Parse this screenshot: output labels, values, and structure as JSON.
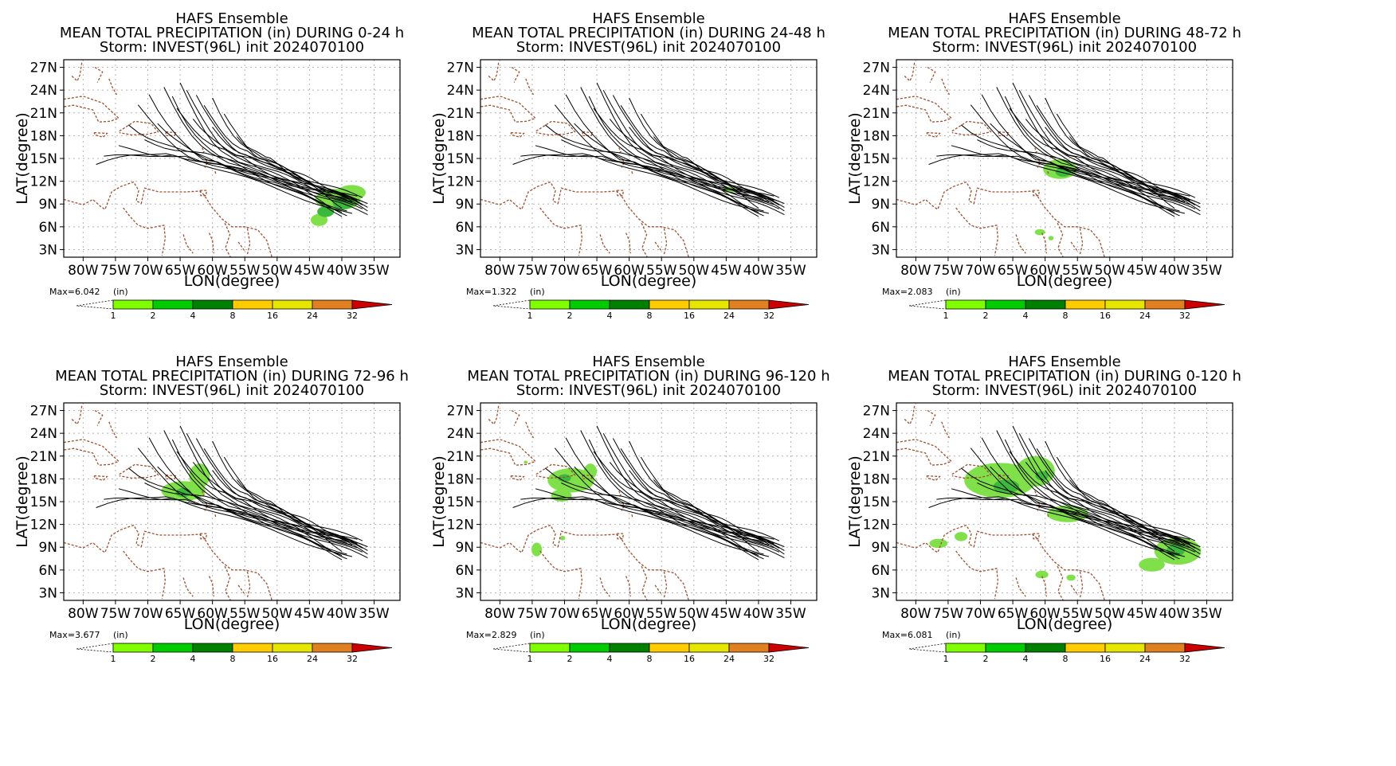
{
  "panels": [
    {
      "t1": "HAFS Ensemble",
      "t2": "MEAN  TOTAL  PRECIPITATION  (in)  DURING    0-24  h",
      "t3": "Storm:  INVEST(96L)  init  2024070100",
      "max": "Max=6.042",
      "unit": "(in)",
      "precip": [
        {
          "lon": -40.6,
          "lat": 9.6,
          "rlon": 3.5,
          "rlat": 1.4,
          "lvl": 1
        },
        {
          "lon": -38.5,
          "lat": 10.5,
          "rlon": 2.2,
          "rlat": 1.0,
          "lvl": 1
        },
        {
          "lon": -43.5,
          "lat": 6.9,
          "rlon": 1.3,
          "rlat": 0.8,
          "lvl": 1
        },
        {
          "lon": -39.8,
          "lat": 9.1,
          "rlon": 1.6,
          "rlat": 0.8,
          "lvl": 2
        },
        {
          "lon": -42.5,
          "lat": 8.0,
          "rlon": 1.3,
          "rlat": 0.7,
          "lvl": 2
        }
      ]
    },
    {
      "t1": "HAFS Ensemble",
      "t2": "MEAN  TOTAL  PRECIPITATION  (in)  DURING  24-48  h",
      "t3": "Storm:  INVEST(96L)  init  2024070100",
      "max": "Max=1.322",
      "unit": "(in)",
      "precip": [
        {
          "lon": -44.5,
          "lat": 10.9,
          "rlon": 1.0,
          "rlat": 0.4,
          "lvl": 1
        }
      ]
    },
    {
      "t1": "HAFS Ensemble",
      "t2": "MEAN  TOTAL  PRECIPITATION  (in)  DURING  48-72  h",
      "t3": "Storm:  INVEST(96L)  init  2024070100",
      "max": "Max=2.083",
      "unit": "(in)",
      "precip": [
        {
          "lon": -57.7,
          "lat": 13.6,
          "rlon": 2.6,
          "rlat": 1.3,
          "lvl": 1
        },
        {
          "lon": -57.2,
          "lat": 13.2,
          "rlon": 1.2,
          "rlat": 0.6,
          "lvl": 2
        },
        {
          "lon": -60.8,
          "lat": 5.3,
          "rlon": 0.8,
          "rlat": 0.4,
          "lvl": 1
        },
        {
          "lon": -59.1,
          "lat": 4.5,
          "rlon": 0.4,
          "rlat": 0.3,
          "lvl": 1
        }
      ]
    },
    {
      "t1": "HAFS Ensemble",
      "t2": "MEAN  TOTAL  PRECIPITATION  (in)  DURING  72-96  h",
      "t3": "Storm:  INVEST(96L)  init  2024070100",
      "max": "Max=3.677",
      "unit": "(in)",
      "precip": [
        {
          "lon": -64.5,
          "lat": 16.4,
          "rlon": 3.4,
          "rlat": 1.3,
          "lvl": 1
        },
        {
          "lon": -62.0,
          "lat": 18.4,
          "rlon": 1.6,
          "rlat": 1.6,
          "lvl": 1
        },
        {
          "lon": -64.5,
          "lat": 16.2,
          "rlon": 1.2,
          "rlat": 0.6,
          "lvl": 2
        }
      ]
    },
    {
      "t1": "HAFS Ensemble",
      "t2": "MEAN  TOTAL  PRECIPITATION  (in)  DURING  96-120  h",
      "t3": "Storm:  INVEST(96L)  init  2024070100",
      "max": "Max=2.829",
      "unit": "(in)",
      "precip": [
        {
          "lon": -69.0,
          "lat": 17.8,
          "rlon": 3.6,
          "rlat": 1.6,
          "lvl": 1
        },
        {
          "lon": -70.5,
          "lat": 15.8,
          "rlon": 1.6,
          "rlat": 0.8,
          "lvl": 1
        },
        {
          "lon": -66.0,
          "lat": 19.0,
          "rlon": 1.0,
          "rlat": 1.0,
          "lvl": 1
        },
        {
          "lon": -70.0,
          "lat": 18.1,
          "rlon": 1.0,
          "rlat": 0.5,
          "lvl": 2
        },
        {
          "lon": -74.3,
          "lat": 8.7,
          "rlon": 0.8,
          "rlat": 0.9,
          "lvl": 1
        },
        {
          "lon": -70.3,
          "lat": 10.2,
          "rlon": 0.4,
          "rlat": 0.3,
          "lvl": 1
        },
        {
          "lon": -76.0,
          "lat": 20.2,
          "rlon": 0.3,
          "rlat": 0.2,
          "lvl": 1
        }
      ]
    },
    {
      "t1": "HAFS Ensemble",
      "t2": "MEAN  TOTAL  PRECIPITATION  (in)  DURING  0-120  h",
      "t3": "Storm:  INVEST(96L)  init  2024070100",
      "max": "Max=6.081",
      "unit": "(in)",
      "precip": [
        {
          "lon": -67.0,
          "lat": 17.8,
          "rlon": 5.5,
          "rlat": 2.3,
          "lvl": 1
        },
        {
          "lon": -61.5,
          "lat": 19.0,
          "rlon": 3.0,
          "rlat": 2.0,
          "lvl": 1
        },
        {
          "lon": -56.5,
          "lat": 13.4,
          "rlon": 3.2,
          "rlat": 1.1,
          "lvl": 1
        },
        {
          "lon": -39.5,
          "lat": 8.5,
          "rlon": 3.6,
          "rlat": 1.8,
          "lvl": 1
        },
        {
          "lon": -43.5,
          "lat": 6.7,
          "rlon": 2.0,
          "rlat": 0.9,
          "lvl": 1
        },
        {
          "lon": -66.0,
          "lat": 17.0,
          "rlon": 2.0,
          "rlat": 0.9,
          "lvl": 2
        },
        {
          "lon": -60.5,
          "lat": 18.4,
          "rlon": 1.0,
          "rlat": 0.6,
          "lvl": 2
        },
        {
          "lon": -39.8,
          "lat": 8.6,
          "rlon": 1.4,
          "rlat": 0.8,
          "lvl": 2
        },
        {
          "lon": -76.5,
          "lat": 9.5,
          "rlon": 1.4,
          "rlat": 0.6,
          "lvl": 1
        },
        {
          "lon": -73.0,
          "lat": 10.4,
          "rlon": 1.0,
          "rlat": 0.6,
          "lvl": 1
        },
        {
          "lon": -60.5,
          "lat": 5.4,
          "rlon": 1.0,
          "rlat": 0.5,
          "lvl": 1
        },
        {
          "lon": -56.0,
          "lat": 5.0,
          "rlon": 0.7,
          "rlat": 0.4,
          "lvl": 1
        }
      ]
    }
  ],
  "axes": {
    "xlabel": "LON(degree)",
    "ylabel": "LAT(degree)",
    "lon_range": [
      -83,
      -31
    ],
    "lat_range": [
      2,
      28
    ],
    "x_ticks": [
      {
        "v": -80,
        "label": "80W"
      },
      {
        "v": -75,
        "label": "75W"
      },
      {
        "v": -70,
        "label": "70W"
      },
      {
        "v": -65,
        "label": "65W"
      },
      {
        "v": -60,
        "label": "60W"
      },
      {
        "v": -55,
        "label": "55W"
      },
      {
        "v": -50,
        "label": "50W"
      },
      {
        "v": -45,
        "label": "45W"
      },
      {
        "v": -40,
        "label": "40W"
      },
      {
        "v": -35,
        "label": "35W"
      }
    ],
    "y_ticks": [
      {
        "v": 3,
        "label": "3N"
      },
      {
        "v": 6,
        "label": "6N"
      },
      {
        "v": 9,
        "label": "9N"
      },
      {
        "v": 12,
        "label": "12N"
      },
      {
        "v": 15,
        "label": "15N"
      },
      {
        "v": 18,
        "label": "18N"
      },
      {
        "v": 21,
        "label": "21N"
      },
      {
        "v": 24,
        "label": "24N"
      },
      {
        "v": 27,
        "label": "27N"
      }
    ]
  },
  "colorbar": {
    "labels": [
      "1",
      "2",
      "4",
      "8",
      "16",
      "24",
      "32"
    ],
    "colors": [
      "#80ff00",
      "#00cc00",
      "#008000",
      "#ffcc00",
      "#e6e600",
      "#e08020",
      "#cc0000"
    ]
  },
  "colors": {
    "track": "#000000",
    "coast": "#a05030",
    "grid": "#b4b4b4",
    "lvl1": "#7fe04a",
    "lvl2": "#3cb83c"
  }
}
